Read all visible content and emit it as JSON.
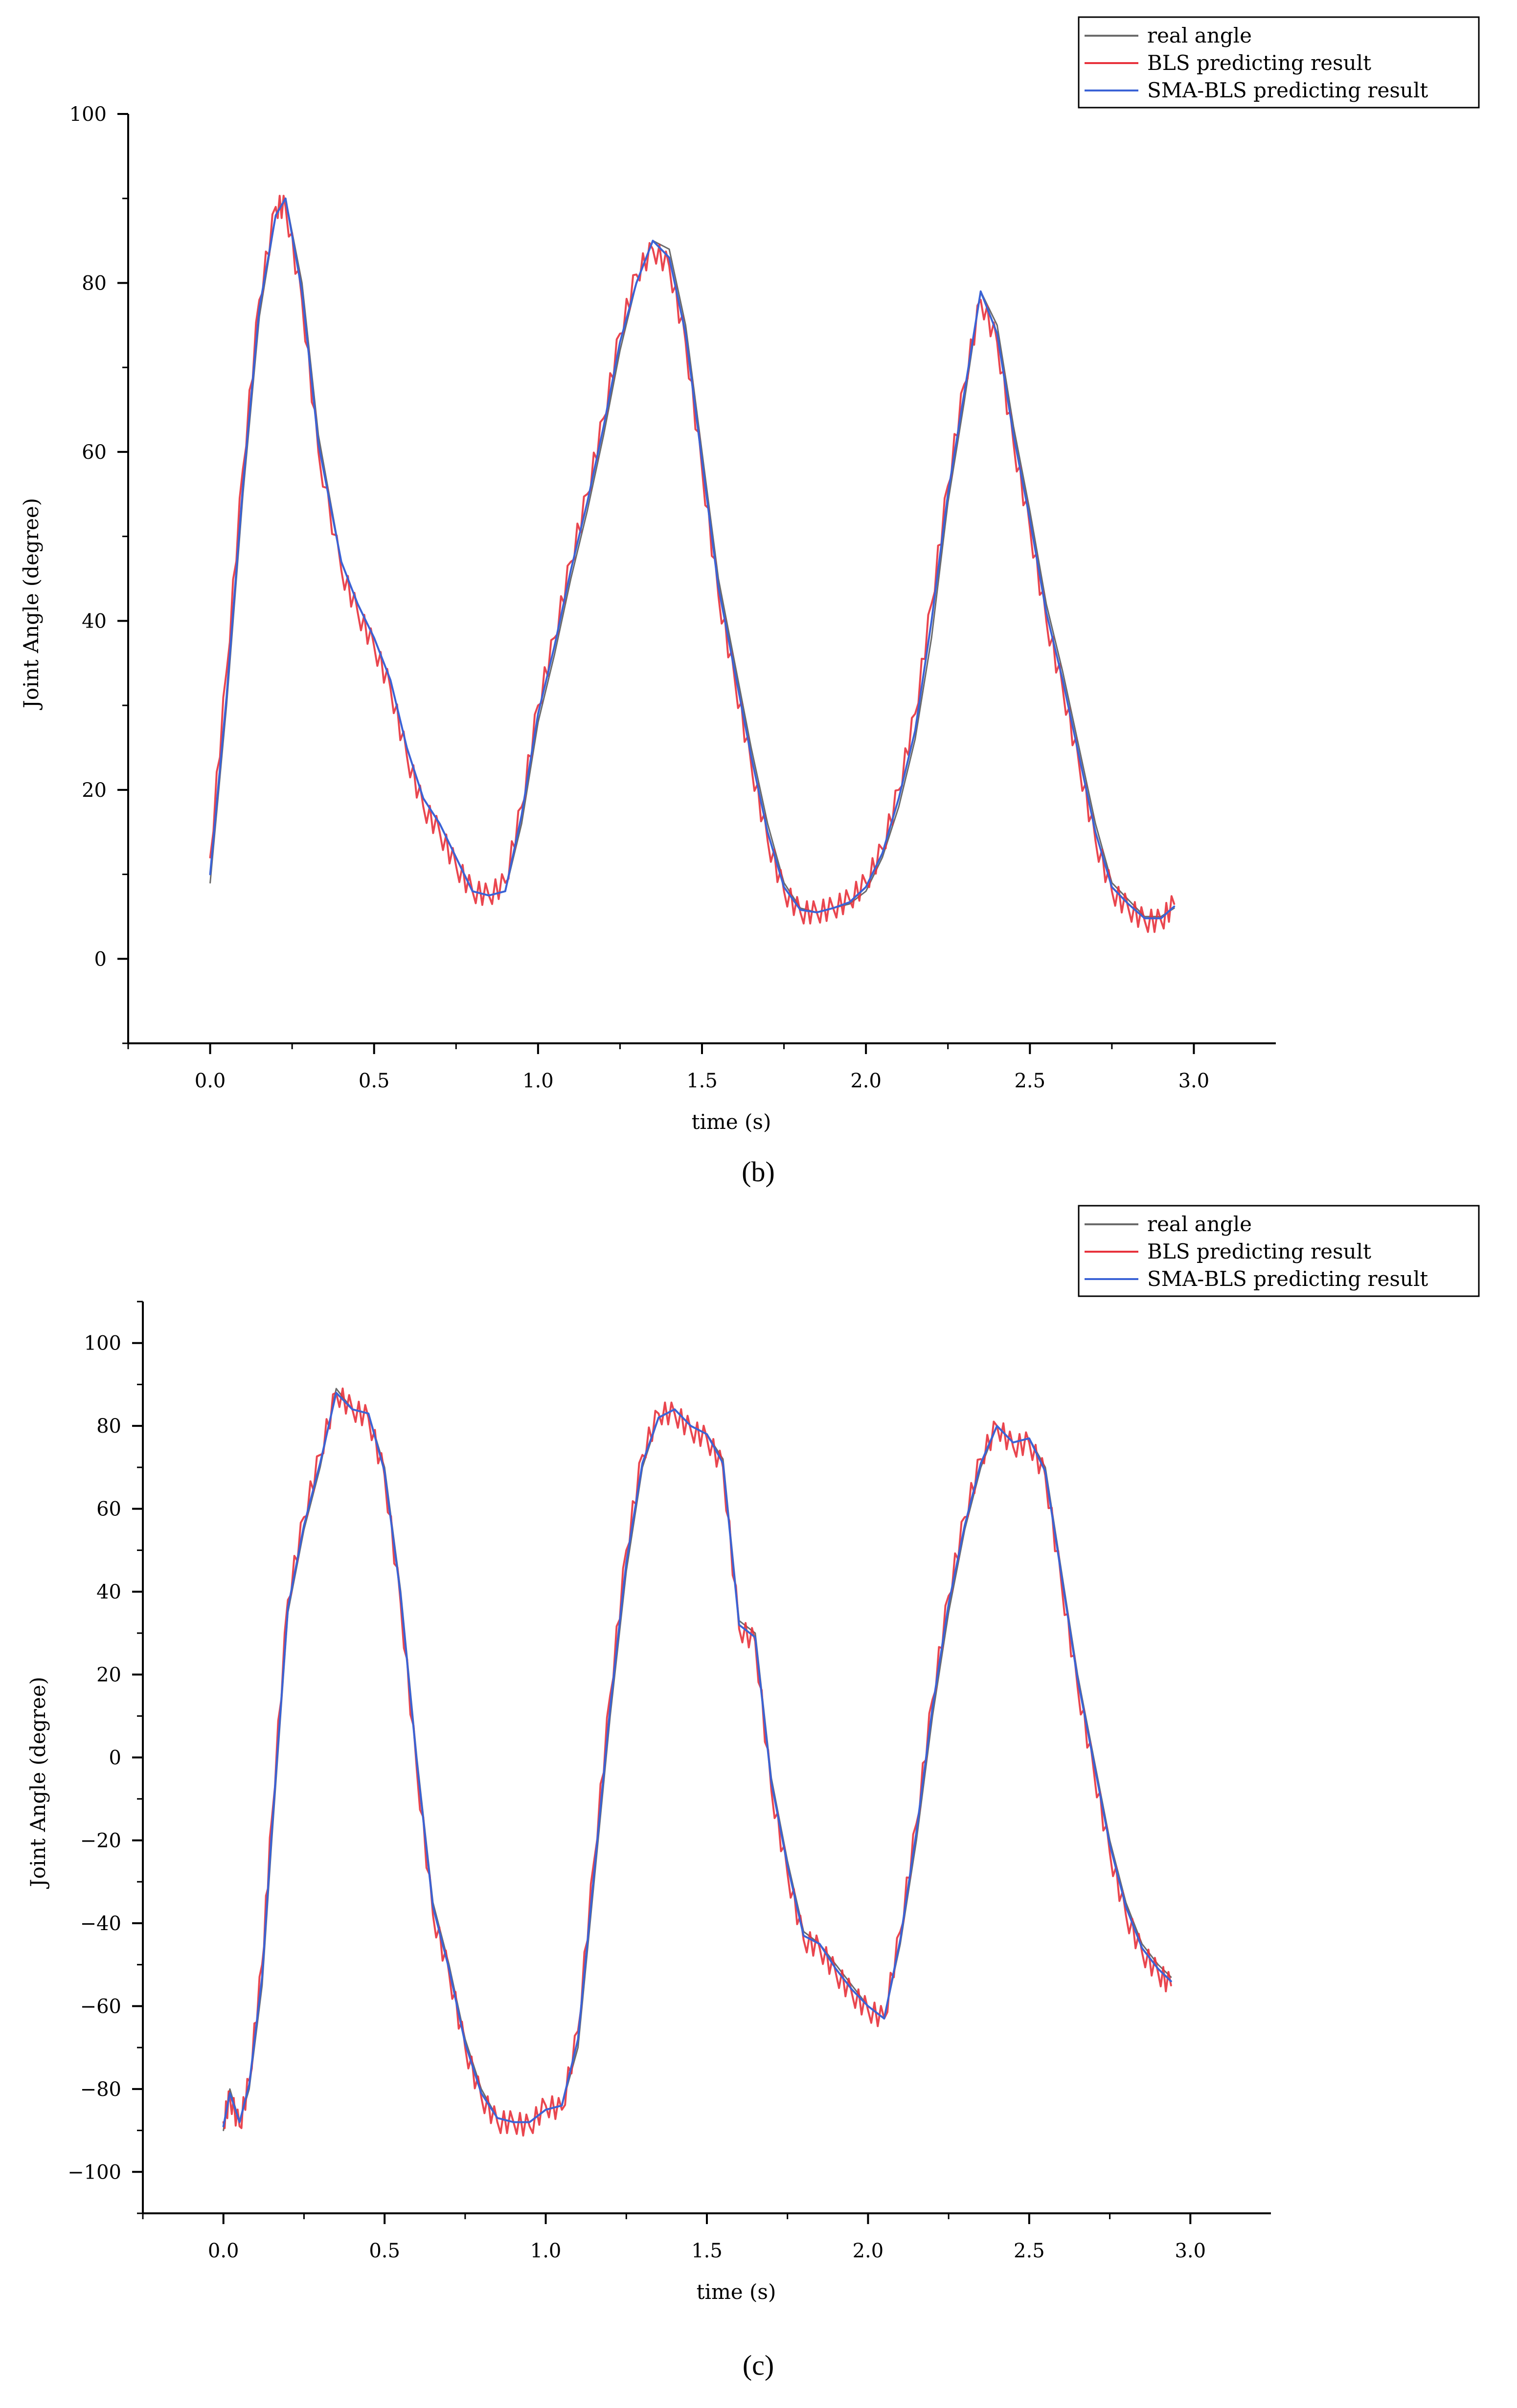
{
  "colors": {
    "real": "#6b6b6b",
    "bls": "#e8323c",
    "sma": "#3b63d6"
  },
  "chart_data": [
    {
      "type": "line",
      "panel_label": "(b)",
      "xlabel": "time (s)",
      "ylabel": "Joint Angle (degree)",
      "xlim": [
        -0.25,
        3.25
      ],
      "ylim": [
        -10,
        100
      ],
      "xticks": [
        0.0,
        0.5,
        1.0,
        1.5,
        2.0,
        2.5,
        3.0
      ],
      "xtick_labels": [
        "0.0",
        "0.5",
        "1.0",
        "1.5",
        "2.0",
        "2.5",
        "3.0"
      ],
      "yticks": [
        0,
        20,
        40,
        60,
        80,
        100
      ],
      "ytick_labels": [
        "0",
        "20",
        "40",
        "60",
        "80",
        "100"
      ],
      "legend": [
        "real angle",
        "BLS predicting result",
        "SMA-BLS predicting result"
      ],
      "legend_position": "top-right",
      "x": [
        0.0,
        0.05,
        0.1,
        0.15,
        0.2,
        0.23,
        0.28,
        0.33,
        0.4,
        0.45,
        0.5,
        0.55,
        0.6,
        0.65,
        0.7,
        0.75,
        0.8,
        0.85,
        0.9,
        0.95,
        1.0,
        1.05,
        1.1,
        1.15,
        1.2,
        1.25,
        1.3,
        1.35,
        1.4,
        1.45,
        1.5,
        1.55,
        1.6,
        1.65,
        1.7,
        1.75,
        1.8,
        1.85,
        1.9,
        1.95,
        2.0,
        2.05,
        2.1,
        2.15,
        2.2,
        2.25,
        2.3,
        2.35,
        2.4,
        2.45,
        2.5,
        2.55,
        2.6,
        2.65,
        2.7,
        2.75,
        2.8,
        2.85,
        2.9,
        2.94
      ],
      "series": [
        {
          "name": "real angle",
          "values": [
            9,
            30,
            55,
            76,
            88,
            90,
            80,
            62,
            47,
            42,
            38,
            33,
            25,
            19,
            16,
            12,
            8,
            7.5,
            8,
            16,
            28,
            36,
            45,
            53,
            62,
            72,
            80,
            85,
            84,
            75,
            60,
            45,
            35,
            25,
            16,
            9,
            6,
            5.5,
            6,
            6.5,
            8,
            12,
            18,
            26,
            38,
            54,
            66,
            79,
            75,
            63,
            53,
            42,
            34,
            25,
            16,
            9,
            7,
            5,
            5,
            6
          ]
        },
        {
          "name": "BLS predicting result",
          "values": [
            12,
            34,
            58,
            78,
            89,
            89,
            78,
            60,
            46,
            41,
            37,
            32,
            24,
            18,
            15,
            11,
            8,
            7.5,
            9,
            18,
            30,
            38,
            47,
            55,
            64,
            74,
            81,
            84,
            82,
            73,
            58,
            43,
            33,
            23,
            14,
            8,
            5.5,
            5.5,
            6,
            7,
            9,
            13,
            20,
            29,
            42,
            56,
            68,
            78,
            73,
            61,
            51,
            40,
            32,
            23,
            14,
            8,
            6,
            4.5,
            4.5,
            6.5
          ]
        },
        {
          "name": "SMA-BLS predicting result",
          "values": [
            10,
            31,
            56,
            77,
            88,
            90,
            79,
            61,
            47,
            42,
            38,
            33,
            25,
            19,
            16,
            12,
            8,
            7.5,
            8,
            17,
            29,
            37,
            46,
            54,
            63,
            73,
            80,
            85,
            83,
            74,
            59,
            44,
            34,
            24,
            15,
            8.5,
            5.8,
            5.5,
            6,
            6.7,
            8.5,
            12.5,
            19,
            27,
            40,
            55,
            67,
            79,
            74,
            62,
            52,
            41,
            33,
            24,
            15,
            8.5,
            6.5,
            4.8,
            4.8,
            6.2
          ]
        }
      ]
    },
    {
      "type": "line",
      "panel_label": "(c)",
      "xlabel": "time (s)",
      "ylabel": "Joint Angle (degree)",
      "xlim": [
        -0.25,
        3.25
      ],
      "ylim": [
        -110,
        110
      ],
      "xticks": [
        0.0,
        0.5,
        1.0,
        1.5,
        2.0,
        2.5,
        3.0
      ],
      "xtick_labels": [
        "0.0",
        "0.5",
        "1.0",
        "1.5",
        "2.0",
        "2.5",
        "3.0"
      ],
      "yticks": [
        -100,
        -80,
        -60,
        -40,
        -20,
        0,
        20,
        40,
        60,
        80,
        100
      ],
      "ytick_labels": [
        "−100",
        "−80",
        "−60",
        "−40",
        "−20",
        "0",
        "20",
        "40",
        "60",
        "80",
        "100"
      ],
      "legend": [
        "real angle",
        "BLS predicting result",
        "SMA-BLS predicting result"
      ],
      "legend_position": "top-right",
      "x": [
        0.0,
        0.02,
        0.05,
        0.08,
        0.12,
        0.15,
        0.2,
        0.25,
        0.3,
        0.35,
        0.4,
        0.45,
        0.5,
        0.55,
        0.6,
        0.65,
        0.7,
        0.75,
        0.8,
        0.85,
        0.9,
        0.95,
        1.0,
        1.05,
        1.1,
        1.15,
        1.2,
        1.25,
        1.3,
        1.35,
        1.4,
        1.45,
        1.5,
        1.55,
        1.6,
        1.65,
        1.7,
        1.75,
        1.8,
        1.85,
        1.9,
        1.95,
        2.0,
        2.05,
        2.1,
        2.15,
        2.2,
        2.25,
        2.3,
        2.35,
        2.4,
        2.45,
        2.5,
        2.55,
        2.6,
        2.65,
        2.7,
        2.75,
        2.8,
        2.85,
        2.9,
        2.94
      ],
      "series": [
        {
          "name": "real angle",
          "values": [
            -90,
            -80,
            -88,
            -80,
            -55,
            -20,
            35,
            55,
            70,
            89,
            84,
            83,
            70,
            40,
            0,
            -35,
            -50,
            -68,
            -80,
            -87,
            -88,
            -88,
            -85,
            -84,
            -70,
            -30,
            10,
            45,
            70,
            82,
            84,
            80,
            78,
            72,
            33,
            30,
            -5,
            -25,
            -42,
            -45,
            -50,
            -55,
            -60,
            -63,
            -45,
            -20,
            10,
            35,
            55,
            70,
            80,
            76,
            77,
            70,
            45,
            20,
            0,
            -20,
            -35,
            -45,
            -50,
            -53
          ]
        },
        {
          "name": "BLS predicting result",
          "values": [
            -88,
            -82,
            -89,
            -78,
            -50,
            -15,
            38,
            58,
            73,
            88,
            84,
            82,
            68,
            37,
            -3,
            -38,
            -52,
            -70,
            -82,
            -88,
            -88,
            -89,
            -84,
            -85,
            -66,
            -25,
            15,
            50,
            73,
            83,
            83,
            79,
            77,
            70,
            31,
            28,
            -8,
            -28,
            -44,
            -46,
            -52,
            -57,
            -61,
            -63,
            -42,
            -16,
            14,
            39,
            58,
            72,
            80,
            75,
            76,
            68,
            42,
            17,
            -3,
            -23,
            -38,
            -47,
            -52,
            -55
          ]
        },
        {
          "name": "SMA-BLS predicting result",
          "values": [
            -89,
            -81,
            -88,
            -79,
            -53,
            -18,
            36,
            56,
            71,
            88,
            84,
            83,
            69,
            39,
            -1,
            -36,
            -51,
            -69,
            -81,
            -87,
            -88,
            -88,
            -85,
            -84,
            -68,
            -28,
            12,
            47,
            71,
            82,
            84,
            80,
            78,
            71,
            32,
            29,
            -6,
            -26,
            -43,
            -45,
            -51,
            -56,
            -60,
            -63,
            -44,
            -18,
            12,
            37,
            56,
            71,
            80,
            76,
            77,
            69,
            44,
            19,
            -1,
            -21,
            -36,
            -46,
            -51,
            -54
          ]
        }
      ]
    }
  ]
}
